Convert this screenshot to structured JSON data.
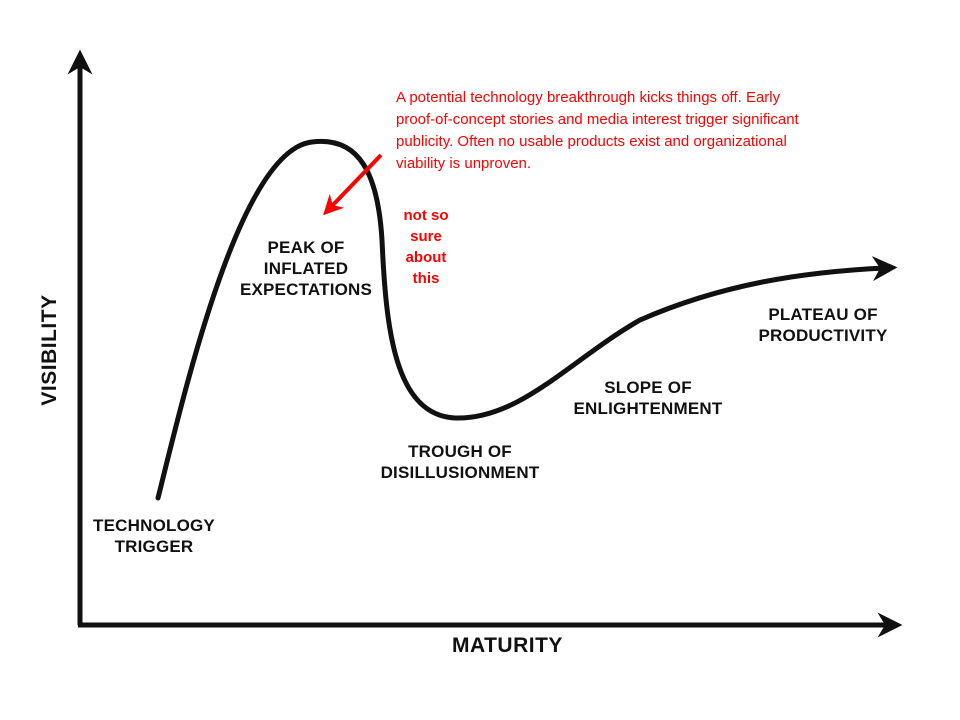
{
  "axes": {
    "x_label": "MATURITY",
    "y_label": "VISIBILITY"
  },
  "phases": [
    {
      "id": "technology-trigger",
      "lines": [
        "TECHNOLOGY",
        "TRIGGER"
      ]
    },
    {
      "id": "peak",
      "lines": [
        "PEAK OF",
        "INFLATED",
        "EXPECTATIONS"
      ]
    },
    {
      "id": "trough",
      "lines": [
        "TROUGH OF",
        "DISILLUSIONMENT"
      ]
    },
    {
      "id": "slope",
      "lines": [
        "SLOPE OF",
        "ENLIGHTENMENT"
      ]
    },
    {
      "id": "plateau",
      "lines": [
        "PLATEAU OF",
        "PRODUCTIVITY"
      ]
    }
  ],
  "annotation": {
    "lines": [
      "A potential technology breakthrough kicks things off. Early",
      "proof-of-concept stories and media interest trigger significant",
      "publicity. Often no usable products exist and organizational",
      "viability is unproven."
    ],
    "color": "#ff0000"
  },
  "side_note": {
    "lines": [
      "not so",
      "sure",
      "about",
      "this"
    ],
    "color": "#ff0000"
  },
  "colors": {
    "ink": "#111111",
    "annotation": "#ff0000",
    "background": "#ffffff"
  }
}
